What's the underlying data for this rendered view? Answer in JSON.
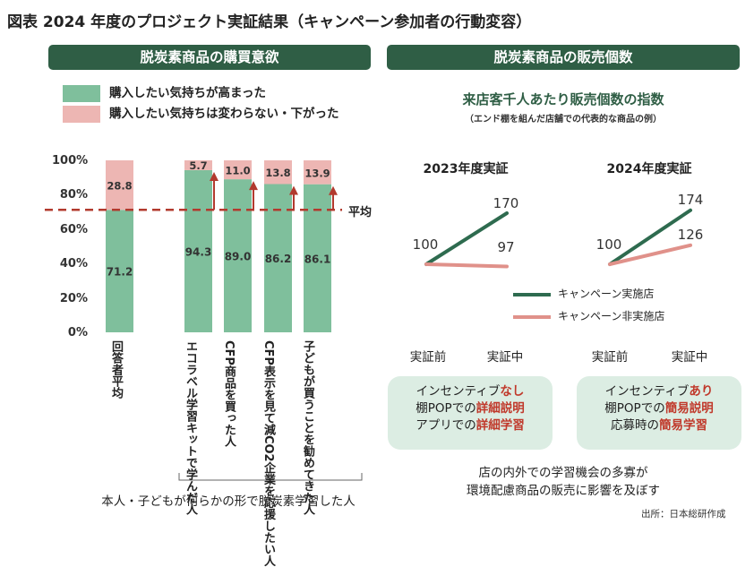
{
  "figure": {
    "title": "図表 2024 年度のプロジェクト実証結果（キャンペーン参加者の行動変容）",
    "source": "出所：日本総研作成"
  },
  "left_panel": {
    "header": "脱炭素商品の購買意欲",
    "legend": [
      {
        "label": "購入したい気持ちが高まった",
        "color": "#7fbf9c"
      },
      {
        "label": "購入したい気持ちは変わらない・下がった",
        "color": "#edb6b3"
      }
    ],
    "average_label": "平均",
    "group_label": "本人・子どもが何らかの形で脱炭素学習した人"
  },
  "right_panel": {
    "header": "脱炭素商品の販売個数",
    "subtitle": "来店客千人あたり販売個数の指数",
    "note": "（エンド棚を組んだ店舗での代表的な商品の例）",
    "legend": [
      {
        "label": "キャンペーン実施店",
        "color": "#2e6b4f"
      },
      {
        "label": "キャンペーン非実施店",
        "color": "#e0918a"
      }
    ],
    "bubbles": [
      {
        "l1a": "インセンティブ",
        "l1b": "なし",
        "l2a": "棚POPでの",
        "l2b": "詳細説明",
        "l3a": "アプリでの",
        "l3b": "詳細学習"
      },
      {
        "l1a": "インセンティブ",
        "l1b": "あり",
        "l2a": "棚POPでの",
        "l2b": "簡易説明",
        "l3a": "応募時の",
        "l3b": "簡易学習"
      }
    ],
    "conclusion_1": "店の内外での学習機会の多寡が",
    "conclusion_2": "環境配慮商品の販売に影響を及ぼす"
  },
  "chart_data": [
    {
      "type": "bar",
      "stacked": true,
      "title": "脱炭素商品の購買意欲",
      "categories": [
        "回答者平均",
        "エコラベル学習キットで学んだ人",
        "CFP商品を買った人",
        "CFP表示を見て減CO2企業を応援したい人",
        "子どもが買うことを勧めてきた人"
      ],
      "series": [
        {
          "name": "購入したい気持ちが高まった",
          "values": [
            71.2,
            94.3,
            89.0,
            86.2,
            86.1
          ],
          "labels": [
            "71.2",
            "94.3",
            "89.0",
            "86.2",
            "86.1"
          ],
          "color": "#7fbf9c"
        },
        {
          "name": "購入したい気持ちは変わらない・下がった",
          "values": [
            28.8,
            5.7,
            11.0,
            13.8,
            13.9
          ],
          "labels": [
            "28.8",
            "5.7",
            "11.0",
            "13.8",
            "13.9"
          ],
          "color": "#edb6b3"
        }
      ],
      "y_ticks": [
        "0%",
        "20%",
        "40%",
        "60%",
        "80%",
        "100%"
      ],
      "ylim": [
        0,
        100
      ],
      "average": 71.2,
      "reference_line_label": "平均",
      "grid": false
    },
    {
      "type": "line",
      "title": "2023年度実証",
      "x": [
        "実証前",
        "実証中"
      ],
      "series": [
        {
          "name": "キャンペーン実施店",
          "values": [
            100,
            170
          ],
          "color": "#2e6b4f"
        },
        {
          "name": "キャンペーン非実施店",
          "values": [
            100,
            97
          ],
          "color": "#e0918a"
        }
      ],
      "point_labels": [
        "100",
        "170",
        "97"
      ]
    },
    {
      "type": "line",
      "title": "2024年度実証",
      "x": [
        "実証前",
        "実証中"
      ],
      "series": [
        {
          "name": "キャンペーン実施店",
          "values": [
            100,
            174
          ],
          "color": "#2e6b4f"
        },
        {
          "name": "キャンペーン非実施店",
          "values": [
            100,
            126
          ],
          "color": "#e0918a"
        }
      ],
      "point_labels": [
        "100",
        "174",
        "126"
      ]
    }
  ]
}
